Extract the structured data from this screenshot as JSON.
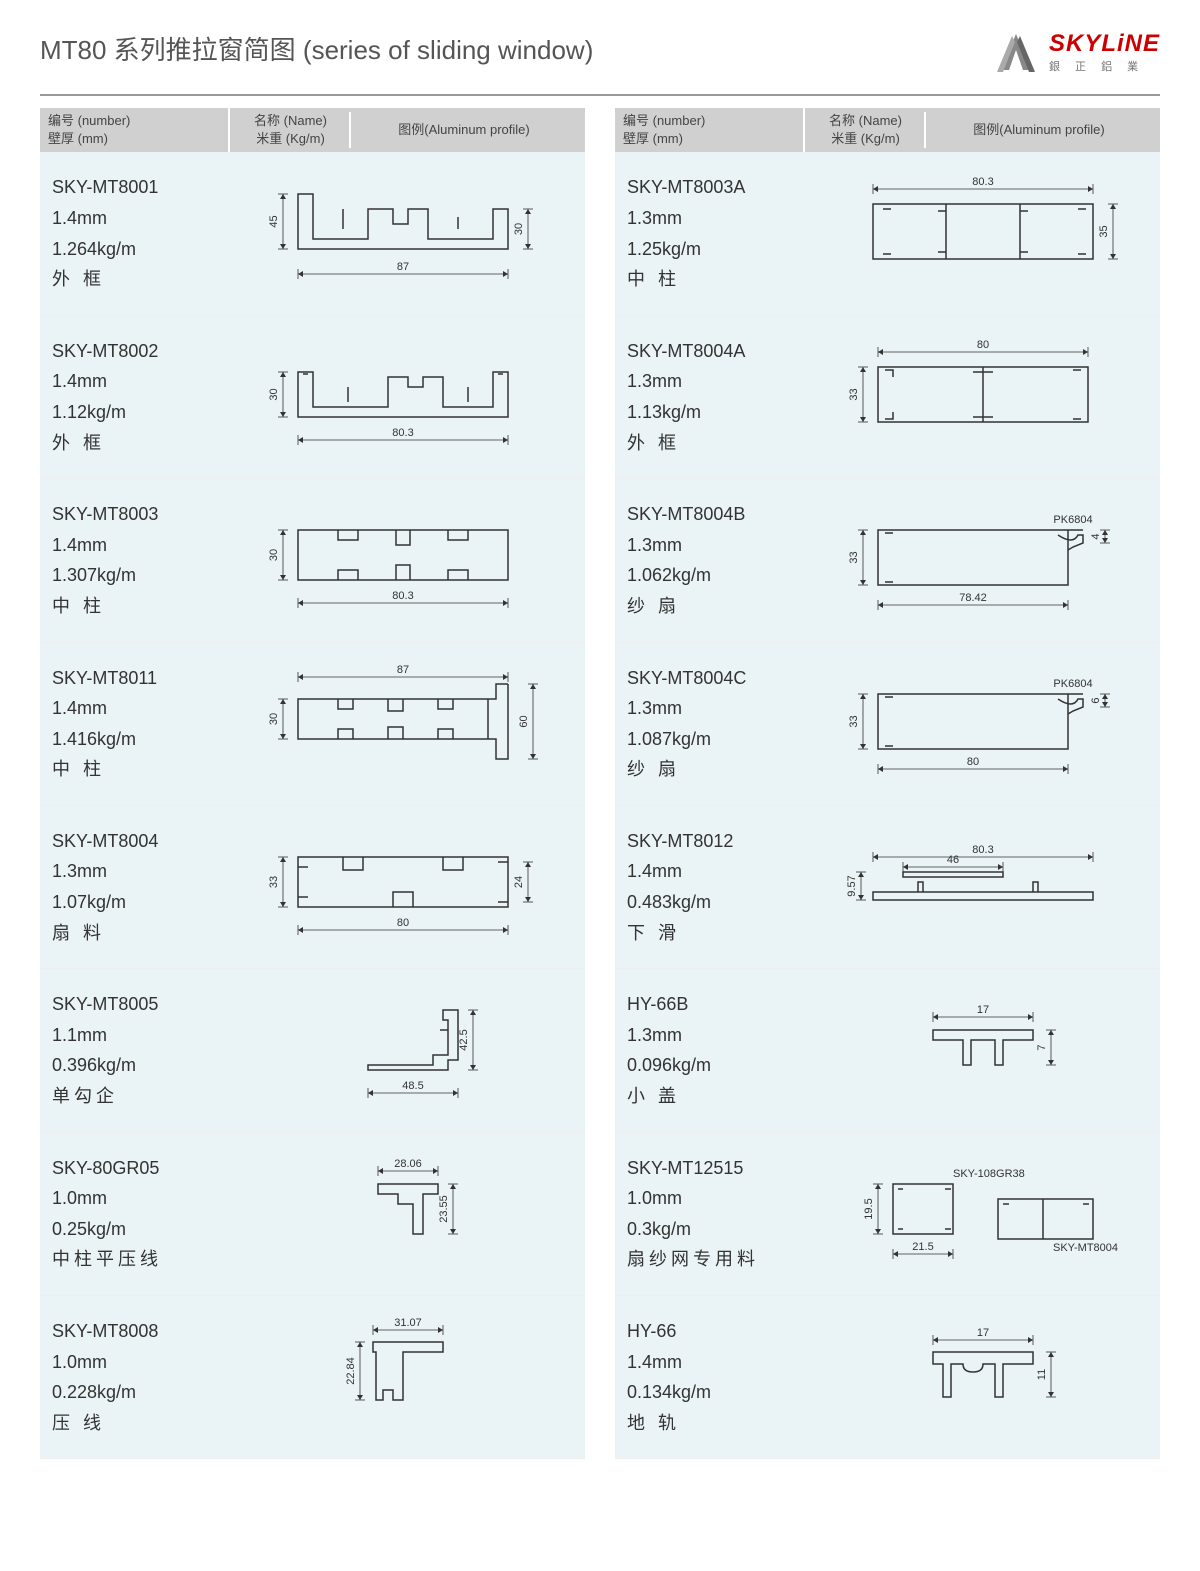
{
  "page": {
    "title": "MT80 系列推拉窗简图 (series of  sliding  window)",
    "brand": "SKYLiNE",
    "brand_sub": "銀 正 鋁 業",
    "header_labels": {
      "number_cn": "编号 (number)",
      "name_cn": "名称 (Name)",
      "thickness_cn": "壁厚 (mm)",
      "weight_cn": "米重 (Kg/m)",
      "diagram_cn": "图例(Aluminum profile)"
    }
  },
  "colors": {
    "alt_row_bg": "#eaf3f6",
    "header_bg": "#d0d0d0",
    "text": "#333333",
    "brand_red": "#cc0000",
    "line": "#333333"
  },
  "profiles_left": [
    {
      "pn": "SKY-MT8001",
      "thick": "1.4mm",
      "weight": "1.264kg/m",
      "name": "外 框",
      "dims": {
        "w": "87",
        "h1": "45",
        "h2": "30"
      },
      "type": "frame_u"
    },
    {
      "pn": "SKY-MT8002",
      "thick": "1.4mm",
      "weight": "1.12kg/m",
      "name": "外 框",
      "dims": {
        "w": "80.3",
        "h": "30"
      },
      "type": "frame_low"
    },
    {
      "pn": "SKY-MT8003",
      "thick": "1.4mm",
      "weight": "1.307kg/m",
      "name": "中 柱",
      "dims": {
        "w": "80.3",
        "h": "30"
      },
      "type": "mullion"
    },
    {
      "pn": "SKY-MT8011",
      "thick": "1.4mm",
      "weight": "1.416kg/m",
      "name": "中 柱",
      "dims": {
        "w": "87",
        "h": "30",
        "h2": "60"
      },
      "type": "mullion_ext"
    },
    {
      "pn": "SKY-MT8004",
      "thick": "1.3mm",
      "weight": "1.07kg/m",
      "name": "扇 料",
      "dims": {
        "w": "80",
        "h": "33",
        "h2": "24"
      },
      "type": "sash"
    },
    {
      "pn": "SKY-MT8005",
      "thick": "1.1mm",
      "weight": "0.396kg/m",
      "name": "单勾企",
      "dims": {
        "w": "48.5",
        "h": "42.5"
      },
      "type": "hook"
    },
    {
      "pn": "SKY-80GR05",
      "thick": "1.0mm",
      "weight": "0.25kg/m",
      "name": "中柱平压线",
      "dims": {
        "w": "28.06",
        "h": "23.55"
      },
      "type": "small_clip"
    },
    {
      "pn": "SKY-MT8008",
      "thick": "1.0mm",
      "weight": "0.228kg/m",
      "name": "压 线",
      "dims": {
        "w": "31.07",
        "h": "22.84"
      },
      "type": "small_clip2"
    }
  ],
  "profiles_right": [
    {
      "pn": "SKY-MT8003A",
      "thick": "1.3mm",
      "weight": "1.25kg/m",
      "name": "中 柱",
      "dims": {
        "w": "80.3",
        "h": "35"
      },
      "type": "triple_box"
    },
    {
      "pn": "SKY-MT8004A",
      "thick": "1.3mm",
      "weight": "1.13kg/m",
      "name": "外 框",
      "dims": {
        "w": "80",
        "h": "33"
      },
      "type": "double_box"
    },
    {
      "pn": "SKY-MT8004B",
      "thick": "1.3mm",
      "weight": "1.062kg/m",
      "name": "纱 扇",
      "dims": {
        "w": "78.42",
        "h": "33",
        "note": "PK6804",
        "h2": "4"
      },
      "type": "screen_sash"
    },
    {
      "pn": "SKY-MT8004C",
      "thick": "1.3mm",
      "weight": "1.087kg/m",
      "name": "纱 扇",
      "dims": {
        "w": "80",
        "h": "33",
        "note": "PK6804",
        "h2": "6"
      },
      "type": "screen_sash"
    },
    {
      "pn": "SKY-MT8012",
      "thick": "1.4mm",
      "weight": "0.483kg/m",
      "name": "下 滑",
      "dims": {
        "w": "80.3",
        "w2": "46",
        "h": "9.57"
      },
      "type": "track"
    },
    {
      "pn": "HY-66B",
      "thick": "1.3mm",
      "weight": "0.096kg/m",
      "name": "小 盖",
      "dims": {
        "w": "17",
        "h": "7"
      },
      "type": "cap"
    },
    {
      "pn": "SKY-MT12515",
      "thick": "1.0mm",
      "weight": "0.3kg/m",
      "name": "扇纱网专用料",
      "dims": {
        "w": "21.5",
        "h": "19.5",
        "note1": "SKY-108GR38",
        "note2": "SKY-MT8004"
      },
      "type": "composite"
    },
    {
      "pn": "HY-66",
      "thick": "1.4mm",
      "weight": "0.134kg/m",
      "name": "地 轨",
      "dims": {
        "w": "17",
        "h": "11"
      },
      "type": "rail"
    }
  ]
}
